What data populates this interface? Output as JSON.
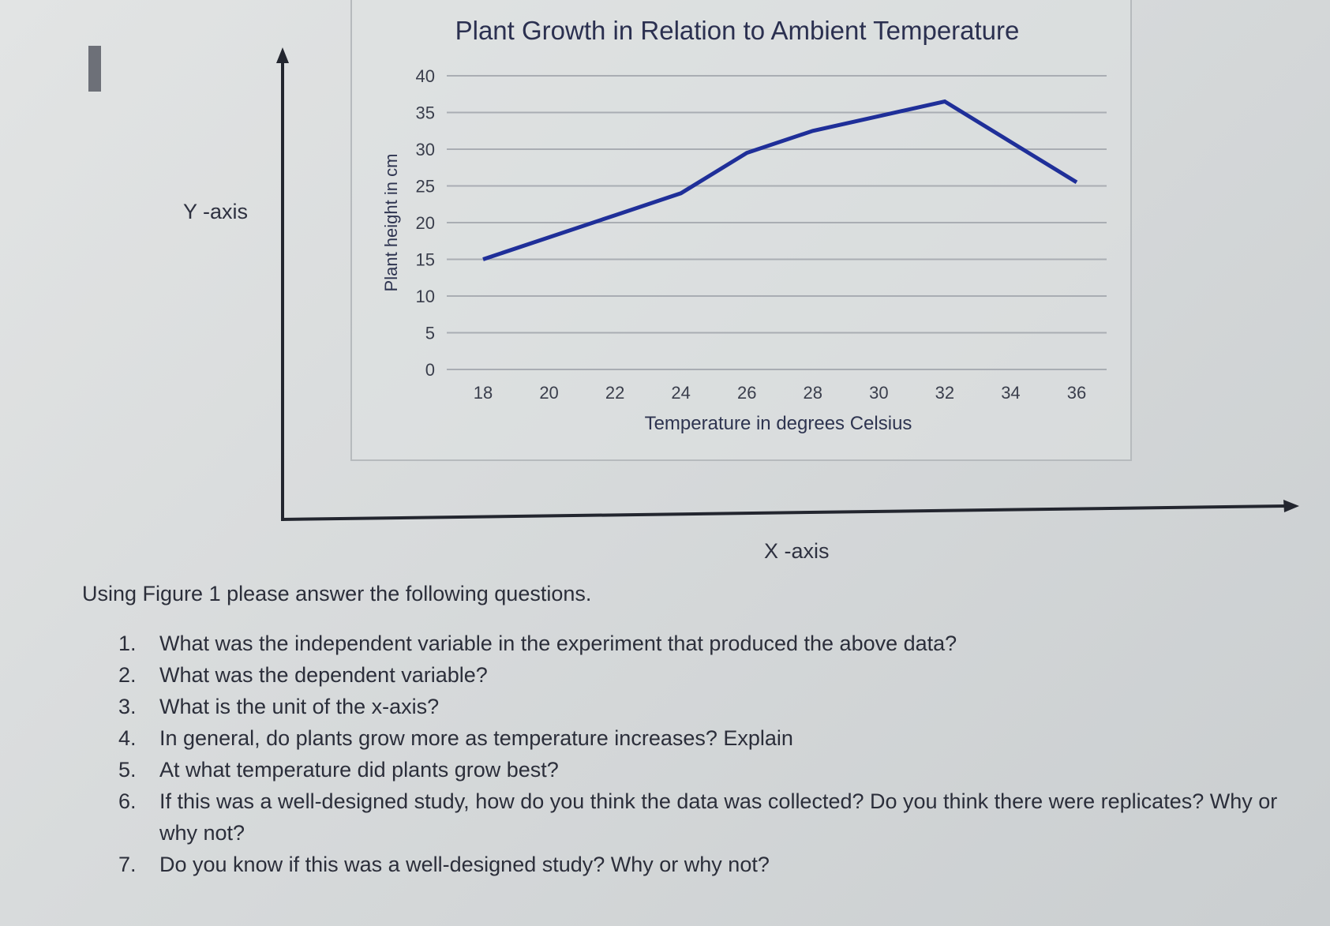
{
  "figure": {
    "y_axis_caption": "Y -axis",
    "x_axis_caption": "X -axis"
  },
  "chart_data": {
    "type": "line",
    "title": "Plant Growth in Relation to Ambient Temperature",
    "xlabel": "Temperature in degrees Celsius",
    "ylabel": "Plant height in cm",
    "x": [
      18,
      20,
      22,
      24,
      26,
      28,
      30,
      32,
      34,
      36
    ],
    "series": [
      {
        "values": [
          15,
          18,
          21,
          24,
          29.5,
          32.5,
          34.5,
          36.5,
          31,
          25.5
        ],
        "color": "#1f2f99"
      }
    ],
    "ylim": [
      0,
      40
    ],
    "yticks": [
      "0",
      "5",
      "10",
      "15",
      "20",
      "25",
      "30",
      "35",
      "40"
    ],
    "xticks": [
      "18",
      "20",
      "22",
      "24",
      "26",
      "28",
      "30",
      "32",
      "34",
      "36"
    ],
    "grid": true,
    "legend": "none"
  },
  "instructions": "Using Figure 1 please answer the following questions.",
  "questions": [
    {
      "num": "1.",
      "text": "What was the independent variable in the experiment that produced the above data?"
    },
    {
      "num": "2.",
      "text": "What was the dependent variable?"
    },
    {
      "num": "3.",
      "text": "What is the unit of the x-axis?"
    },
    {
      "num": "4.",
      "text": "In general, do plants grow more as temperature increases? Explain"
    },
    {
      "num": "5.",
      "text": "At what temperature did plants grow best?"
    },
    {
      "num": "6.",
      "text": "If this was a well-designed study, how do you think the data was collected? Do you think there were replicates? Why or why not?"
    },
    {
      "num": "7.",
      "text": "Do you know if this was a well-designed study? Why or why not?"
    }
  ]
}
